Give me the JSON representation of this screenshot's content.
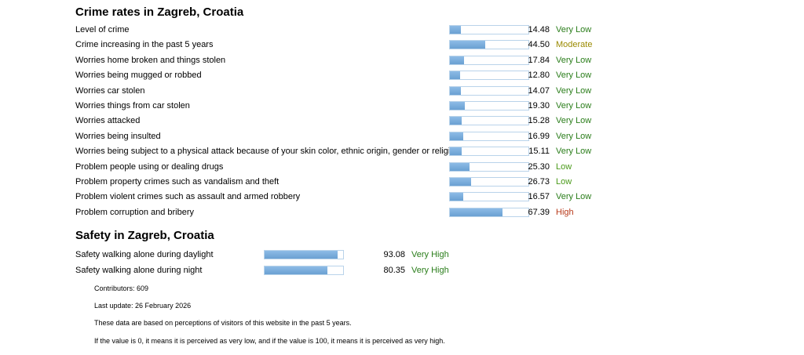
{
  "crime": {
    "title": "Crime rates in Zagreb, Croatia",
    "rows": [
      {
        "label": "Level of crime",
        "value": "14.48",
        "level": "Very Low",
        "color": "#2a7d1a"
      },
      {
        "label": "Crime increasing in the past 5 years",
        "value": "44.50",
        "level": "Moderate",
        "color": "#9a8a00"
      },
      {
        "label": "Worries home broken and things stolen",
        "value": "17.84",
        "level": "Very Low",
        "color": "#2a7d1a"
      },
      {
        "label": "Worries being mugged or robbed",
        "value": "12.80",
        "level": "Very Low",
        "color": "#2a7d1a"
      },
      {
        "label": "Worries car stolen",
        "value": "14.07",
        "level": "Very Low",
        "color": "#2a7d1a"
      },
      {
        "label": "Worries things from car stolen",
        "value": "19.30",
        "level": "Very Low",
        "color": "#2a7d1a"
      },
      {
        "label": "Worries attacked",
        "value": "15.28",
        "level": "Very Low",
        "color": "#2a7d1a"
      },
      {
        "label": "Worries being insulted",
        "value": "16.99",
        "level": "Very Low",
        "color": "#2a7d1a"
      },
      {
        "label": "Worries being subject to a physical attack because of your skin color, ethnic origin, gender or religion",
        "value": "15.11",
        "level": "Very Low",
        "color": "#2a7d1a"
      },
      {
        "label": "Problem people using or dealing drugs",
        "value": "25.30",
        "level": "Low",
        "color": "#4a9a1a"
      },
      {
        "label": "Problem property crimes such as vandalism and theft",
        "value": "26.73",
        "level": "Low",
        "color": "#4a9a1a"
      },
      {
        "label": "Problem violent crimes such as assault and armed robbery",
        "value": "16.57",
        "level": "Very Low",
        "color": "#2a7d1a"
      },
      {
        "label": "Problem corruption and bribery",
        "value": "67.39",
        "level": "High",
        "color": "#b83a1a"
      }
    ]
  },
  "safety": {
    "title": "Safety in Zagreb, Croatia",
    "rows": [
      {
        "label": "Safety walking alone during daylight",
        "value": "93.08",
        "level": "Very High",
        "color": "#2a7d1a"
      },
      {
        "label": "Safety walking alone during night",
        "value": "80.35",
        "level": "Very High",
        "color": "#2a7d1a"
      }
    ]
  },
  "notes": {
    "contributors": "Contributors: 609",
    "last_update": "Last update: 26 February 2026",
    "perception": "These data are based on perceptions of visitors of this website in the past 5 years.",
    "scale": "If the value is 0, it means it is perceived as very low, and if the value is 100, it means it is perceived as very high."
  }
}
